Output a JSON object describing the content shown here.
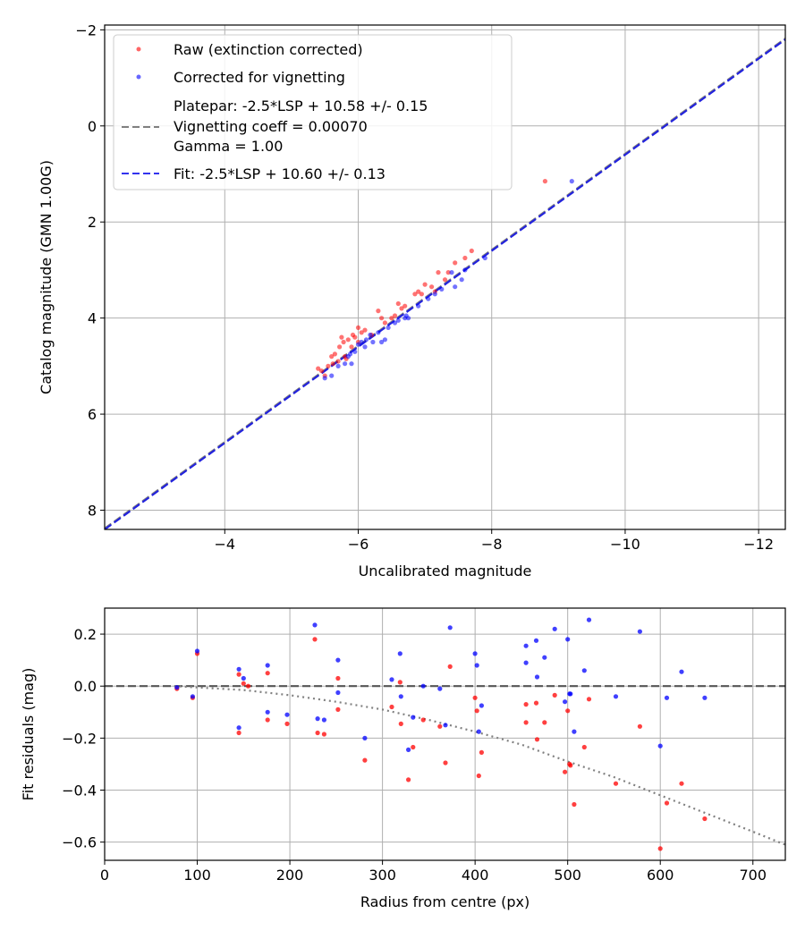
{
  "chart_data": [
    {
      "type": "scatter",
      "title": "",
      "xlabel": "Uncalibrated magnitude",
      "ylabel": "Catalog magnitude (GMN 1.00G)",
      "xlim": [
        -2.2,
        -12.4
      ],
      "ylim": [
        8.4,
        -2.1
      ],
      "x_inverted": true,
      "y_inverted": true,
      "xticks": [
        -4,
        -6,
        -8,
        -10,
        -12
      ],
      "xtick_labels": [
        "−4",
        "−6",
        "−8",
        "−10",
        "−12"
      ],
      "yticks": [
        -2,
        0,
        2,
        4,
        6,
        8
      ],
      "ytick_labels": [
        "−2",
        "0",
        "2",
        "4",
        "6",
        "8"
      ],
      "grid": true,
      "legend_position": "top-left",
      "legend": [
        {
          "label": "Raw (extinction corrected)",
          "marker": "dot",
          "color": "#ff0000"
        },
        {
          "label": "Corrected for vignetting",
          "marker": "dot",
          "color": "#0000ff"
        },
        {
          "label_lines": [
            "Platepar: -2.5*LSP + 10.58 +/- 0.15",
            "Vignetting coeff = 0.00070",
            "Gamma = 1.00"
          ],
          "marker": "dash",
          "color": "#808080"
        },
        {
          "label": "Fit: -2.5*LSP + 10.60 +/- 0.13",
          "marker": "dash",
          "color": "#3333ee"
        }
      ],
      "series": [
        {
          "name": "Raw (extinction corrected)",
          "color": "#ff0000",
          "points": [
            [
              -5.4,
              5.05
            ],
            [
              -5.45,
              5.1
            ],
            [
              -5.5,
              5.2
            ],
            [
              -5.55,
              5.0
            ],
            [
              -5.6,
              4.8
            ],
            [
              -5.62,
              4.95
            ],
            [
              -5.65,
              4.75
            ],
            [
              -5.7,
              4.9
            ],
            [
              -5.72,
              4.6
            ],
            [
              -5.75,
              4.4
            ],
            [
              -5.78,
              4.5
            ],
            [
              -5.8,
              4.8
            ],
            [
              -5.82,
              4.85
            ],
            [
              -5.85,
              4.45
            ],
            [
              -5.9,
              4.6
            ],
            [
              -5.92,
              4.35
            ],
            [
              -5.95,
              4.4
            ],
            [
              -6.0,
              4.5
            ],
            [
              -6.0,
              4.2
            ],
            [
              -6.05,
              4.3
            ],
            [
              -6.1,
              4.25
            ],
            [
              -6.2,
              4.35
            ],
            [
              -6.3,
              3.85
            ],
            [
              -6.35,
              4.0
            ],
            [
              -6.4,
              4.1
            ],
            [
              -6.5,
              4.0
            ],
            [
              -6.55,
              3.95
            ],
            [
              -6.6,
              3.7
            ],
            [
              -6.65,
              3.8
            ],
            [
              -6.7,
              3.75
            ],
            [
              -6.85,
              3.5
            ],
            [
              -6.9,
              3.45
            ],
            [
              -6.95,
              3.5
            ],
            [
              -7.0,
              3.3
            ],
            [
              -7.1,
              3.35
            ],
            [
              -7.15,
              3.45
            ],
            [
              -7.2,
              3.05
            ],
            [
              -7.3,
              3.2
            ],
            [
              -7.35,
              3.05
            ],
            [
              -7.45,
              2.85
            ],
            [
              -7.6,
              2.75
            ],
            [
              -7.7,
              2.6
            ],
            [
              -8.8,
              1.15
            ]
          ]
        },
        {
          "name": "Corrected for vignetting",
          "color": "#0000ff",
          "points": [
            [
              -5.5,
              5.25
            ],
            [
              -5.6,
              5.2
            ],
            [
              -5.7,
              5.0
            ],
            [
              -5.8,
              4.95
            ],
            [
              -5.85,
              4.8
            ],
            [
              -5.88,
              4.75
            ],
            [
              -5.9,
              4.95
            ],
            [
              -5.95,
              4.7
            ],
            [
              -6.0,
              4.55
            ],
            [
              -6.05,
              4.5
            ],
            [
              -6.1,
              4.6
            ],
            [
              -6.12,
              4.45
            ],
            [
              -6.18,
              4.35
            ],
            [
              -6.22,
              4.5
            ],
            [
              -6.3,
              4.3
            ],
            [
              -6.35,
              4.5
            ],
            [
              -6.4,
              4.45
            ],
            [
              -6.45,
              4.2
            ],
            [
              -6.55,
              4.1
            ],
            [
              -6.6,
              4.05
            ],
            [
              -6.7,
              4.0
            ],
            [
              -6.72,
              3.95
            ],
            [
              -6.75,
              4.0
            ],
            [
              -6.9,
              3.75
            ],
            [
              -7.05,
              3.6
            ],
            [
              -7.15,
              3.5
            ],
            [
              -7.25,
              3.4
            ],
            [
              -7.4,
              3.05
            ],
            [
              -7.45,
              3.35
            ],
            [
              -7.55,
              3.2
            ],
            [
              -7.6,
              3.0
            ],
            [
              -7.9,
              2.75
            ],
            [
              -9.2,
              1.15
            ]
          ]
        },
        {
          "name": "Platepar: -2.5*LSP + 10.58 +/- 0.15",
          "kind": "line",
          "style": "dashed",
          "color": "#808080",
          "points": [
            [
              -2.2,
              8.38
            ],
            [
              -12.4,
              -1.82
            ]
          ]
        },
        {
          "name": "Fit: -2.5*LSP + 10.60 +/- 0.13",
          "kind": "line",
          "style": "dashed",
          "color": "#2222dd",
          "points": [
            [
              -2.2,
              8.4
            ],
            [
              -12.4,
              -1.8
            ]
          ]
        }
      ]
    },
    {
      "type": "scatter",
      "title": "",
      "xlabel": "Radius from centre (px)",
      "ylabel": "Fit residuals (mag)",
      "xlim": [
        0,
        735
      ],
      "ylim": [
        -0.67,
        0.3
      ],
      "xticks": [
        0,
        100,
        200,
        300,
        400,
        500,
        600,
        700
      ],
      "xtick_labels": [
        "0",
        "100",
        "200",
        "300",
        "400",
        "500",
        "600",
        "700"
      ],
      "yticks": [
        0.2,
        0.0,
        -0.2,
        -0.4,
        -0.6
      ],
      "ytick_labels": [
        "0.2",
        "0.0",
        "−0.2",
        "−0.4",
        "−0.6"
      ],
      "grid": true,
      "series": [
        {
          "name": "Raw",
          "color": "#ff0000",
          "points": [
            [
              78,
              -0.01
            ],
            [
              95,
              -0.045
            ],
            [
              100,
              0.125
            ],
            [
              145,
              0.045
            ],
            [
              145,
              -0.18
            ],
            [
              150,
              0.01
            ],
            [
              155,
              0.0
            ],
            [
              176,
              0.05
            ],
            [
              176,
              -0.13
            ],
            [
              197,
              -0.145
            ],
            [
              227,
              0.18
            ],
            [
              230,
              -0.18
            ],
            [
              237,
              -0.185
            ],
            [
              252,
              0.03
            ],
            [
              252,
              -0.09
            ],
            [
              281,
              -0.285
            ],
            [
              310,
              -0.08
            ],
            [
              319,
              0.015
            ],
            [
              320,
              -0.145
            ],
            [
              328,
              -0.36
            ],
            [
              333,
              -0.235
            ],
            [
              344,
              -0.13
            ],
            [
              362,
              -0.155
            ],
            [
              368,
              -0.295
            ],
            [
              373,
              0.075
            ],
            [
              400,
              -0.045
            ],
            [
              402,
              -0.095
            ],
            [
              404,
              -0.345
            ],
            [
              407,
              -0.255
            ],
            [
              455,
              -0.07
            ],
            [
              455,
              -0.14
            ],
            [
              466,
              -0.065
            ],
            [
              467,
              -0.205
            ],
            [
              475,
              -0.14
            ],
            [
              486,
              -0.035
            ],
            [
              497,
              -0.33
            ],
            [
              500,
              -0.095
            ],
            [
              502,
              -0.3
            ],
            [
              503,
              -0.305
            ],
            [
              507,
              -0.455
            ],
            [
              518,
              -0.235
            ],
            [
              523,
              -0.05
            ],
            [
              552,
              -0.375
            ],
            [
              578,
              -0.155
            ],
            [
              600,
              -0.625
            ],
            [
              607,
              -0.45
            ],
            [
              623,
              -0.375
            ],
            [
              648,
              -0.51
            ]
          ]
        },
        {
          "name": "Corrected",
          "color": "#0000ff",
          "points": [
            [
              78,
              -0.005
            ],
            [
              95,
              -0.04
            ],
            [
              100,
              0.135
            ],
            [
              145,
              0.065
            ],
            [
              145,
              -0.16
            ],
            [
              150,
              0.03
            ],
            [
              176,
              0.08
            ],
            [
              176,
              -0.1
            ],
            [
              197,
              -0.11
            ],
            [
              227,
              0.235
            ],
            [
              230,
              -0.125
            ],
            [
              237,
              -0.13
            ],
            [
              252,
              0.1
            ],
            [
              252,
              -0.025
            ],
            [
              281,
              -0.2
            ],
            [
              310,
              0.025
            ],
            [
              319,
              0.125
            ],
            [
              320,
              -0.04
            ],
            [
              328,
              -0.245
            ],
            [
              333,
              -0.12
            ],
            [
              344,
              0.0
            ],
            [
              362,
              -0.01
            ],
            [
              368,
              -0.15
            ],
            [
              373,
              0.225
            ],
            [
              400,
              0.125
            ],
            [
              402,
              0.08
            ],
            [
              404,
              -0.175
            ],
            [
              407,
              -0.075
            ],
            [
              455,
              0.155
            ],
            [
              455,
              0.09
            ],
            [
              466,
              0.175
            ],
            [
              467,
              0.035
            ],
            [
              475,
              0.11
            ],
            [
              486,
              0.22
            ],
            [
              497,
              -0.06
            ],
            [
              500,
              0.18
            ],
            [
              502,
              -0.03
            ],
            [
              503,
              -0.03
            ],
            [
              507,
              -0.175
            ],
            [
              518,
              0.06
            ],
            [
              523,
              0.255
            ],
            [
              552,
              -0.04
            ],
            [
              578,
              0.21
            ],
            [
              600,
              -0.23
            ],
            [
              607,
              -0.045
            ],
            [
              623,
              0.055
            ],
            [
              648,
              -0.045
            ]
          ]
        },
        {
          "name": "Zero line",
          "kind": "line",
          "style": "dashed",
          "color": "#555555",
          "points": [
            [
              0,
              0
            ],
            [
              735,
              0
            ]
          ]
        },
        {
          "name": "Vignetting model",
          "kind": "line",
          "style": "dotted",
          "color": "#808080",
          "points": [
            [
              75,
              0.0
            ],
            [
              100,
              -0.005
            ],
            [
              150,
              -0.015
            ],
            [
              200,
              -0.035
            ],
            [
              250,
              -0.06
            ],
            [
              300,
              -0.09
            ],
            [
              350,
              -0.13
            ],
            [
              400,
              -0.175
            ],
            [
              450,
              -0.225
            ],
            [
              500,
              -0.29
            ],
            [
              550,
              -0.35
            ],
            [
              600,
              -0.42
            ],
            [
              650,
              -0.49
            ],
            [
              700,
              -0.56
            ],
            [
              735,
              -0.61
            ]
          ]
        }
      ]
    }
  ]
}
